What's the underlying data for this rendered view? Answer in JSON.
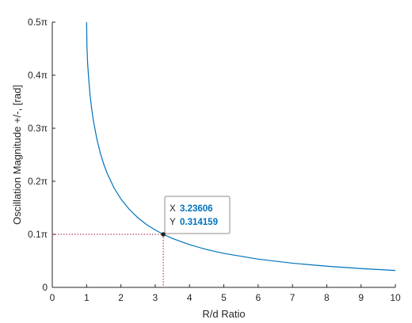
{
  "chart_data": {
    "type": "line",
    "xlabel": "R/d Ratio",
    "ylabel": "Oscillation Magnitude +/-, [rad]",
    "xlim": [
      0,
      10
    ],
    "ylim": [
      0,
      1.5708
    ],
    "x_ticks": [
      0,
      1,
      2,
      3,
      4,
      5,
      6,
      7,
      8,
      9,
      10
    ],
    "x_tick_labels": [
      "0",
      "1",
      "2",
      "3",
      "4",
      "5",
      "6",
      "7",
      "8",
      "9",
      "10"
    ],
    "y_ticks": [
      0,
      0.314159,
      0.628319,
      0.942478,
      1.256637,
      1.570796
    ],
    "y_tick_labels": [
      "0",
      "0.1π",
      "0.2π",
      "0.3π",
      "0.4π",
      "0.5π"
    ],
    "grid": false,
    "series": [
      {
        "function": "asin(1/x)",
        "color": "#0072BD",
        "x": [
          1.0,
          1.01,
          1.03,
          1.06,
          1.1,
          1.15,
          1.2,
          1.3,
          1.4,
          1.5,
          1.6,
          1.8,
          2.0,
          2.25,
          2.5,
          2.75,
          3.0,
          3.23606,
          3.5,
          4.0,
          4.5,
          5.0,
          6.0,
          7.0,
          8.0,
          9.0,
          10.0
        ],
        "y": [
          1.5708,
          1.4294,
          1.3273,
          1.2376,
          1.1411,
          1.0552,
          0.9851,
          0.8776,
          0.7956,
          0.7297,
          0.6751,
          0.589,
          0.5236,
          0.4606,
          0.4115,
          0.3716,
          0.3398,
          0.314159,
          0.2898,
          0.2527,
          0.2241,
          0.2014,
          0.1674,
          0.1433,
          0.1253,
          0.1113,
          0.1002
        ]
      }
    ],
    "datatip": {
      "x": 3.23606,
      "y": 0.314159,
      "x_label": "X",
      "y_label": "Y",
      "x_text": "3.23606",
      "y_text": "0.314159",
      "value_color": "#0072BD",
      "guide_color": "#A2142F"
    },
    "axis_color": "#262626"
  }
}
